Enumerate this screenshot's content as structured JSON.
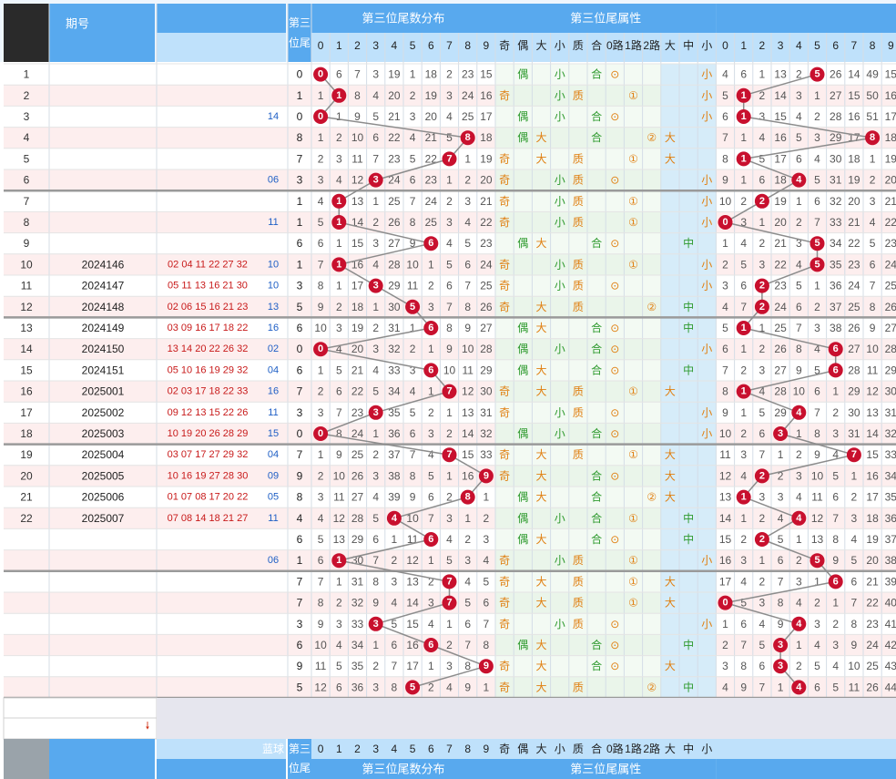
{
  "header": {
    "issue_col": "期号",
    "weitail_col_top": "第三",
    "weitail_col_bot": "位尾",
    "group1_title": "第三位尾数分布",
    "group2_title": "第三位尾属性",
    "group3_title": "",
    "digits": [
      "0",
      "1",
      "2",
      "3",
      "4",
      "5",
      "6",
      "7",
      "8",
      "9"
    ],
    "attr_labels": [
      "奇",
      "偶",
      "大",
      "小",
      "质",
      "合",
      "0路",
      "1路",
      "2路",
      "大",
      "中",
      "小"
    ],
    "footer_blue": "蓝球"
  },
  "colors": {
    "header_blue": "#58a9ee",
    "header_light": "#bfe1fb",
    "ball_red": "#c8102e",
    "row_pink": "#fdeeee",
    "row_white": "#ffffff",
    "attr_green": "#2e9a2e",
    "attr_orange": "#e07f10"
  },
  "rows": [
    {
      "n": "1",
      "issue": "",
      "nums": "",
      "blue": "",
      "w": 0,
      "c1": [
        0,
        6,
        7,
        3,
        19,
        1,
        18,
        2,
        23,
        15
      ],
      "a": [
        "",
        "偶",
        "",
        "小",
        "",
        "合",
        "⊙",
        "",
        "",
        "",
        "",
        "小"
      ],
      "c3": [
        4,
        6,
        1,
        13,
        2,
        5,
        26,
        14,
        49,
        15
      ],
      "h": 5
    },
    {
      "n": "2",
      "issue": "",
      "nums": "",
      "blue": "",
      "w": 1,
      "c1": [
        1,
        1,
        8,
        4,
        20,
        2,
        19,
        3,
        24,
        16
      ],
      "a": [
        "奇",
        "",
        "",
        "小",
        "质",
        "",
        "",
        "①",
        "",
        "",
        "",
        "小"
      ],
      "c3": [
        5,
        1,
        2,
        14,
        3,
        1,
        27,
        15,
        50,
        16
      ],
      "h": 1
    },
    {
      "n": "3",
      "issue": "",
      "nums": "",
      "blue": "14",
      "w": 0,
      "c1": [
        0,
        1,
        9,
        5,
        21,
        3,
        20,
        4,
        25,
        17
      ],
      "a": [
        "",
        "偶",
        "",
        "小",
        "",
        "合",
        "⊙",
        "",
        "",
        "",
        "",
        "小"
      ],
      "c3": [
        6,
        1,
        3,
        15,
        4,
        2,
        28,
        16,
        51,
        17
      ],
      "h": 1
    },
    {
      "n": "4",
      "issue": "",
      "nums": "",
      "blue": "",
      "w": 8,
      "c1": [
        1,
        2,
        10,
        6,
        22,
        4,
        21,
        5,
        8,
        18
      ],
      "a": [
        "",
        "偶",
        "大",
        "",
        "",
        "合",
        "",
        "",
        "②",
        "大",
        "",
        ""
      ],
      "c3": [
        7,
        1,
        4,
        16,
        5,
        3,
        29,
        17,
        8,
        18
      ],
      "h": 8
    },
    {
      "n": "5",
      "issue": "",
      "nums": "",
      "blue": "",
      "w": 7,
      "c1": [
        2,
        3,
        11,
        7,
        23,
        5,
        22,
        7,
        1,
        19
      ],
      "a": [
        "奇",
        "",
        "大",
        "",
        "质",
        "",
        "",
        "①",
        "",
        "大",
        "",
        ""
      ],
      "c3": [
        8,
        1,
        5,
        17,
        6,
        4,
        30,
        18,
        1,
        19
      ],
      "h": 1
    },
    {
      "n": "6",
      "issue": "",
      "nums": "",
      "blue": "06",
      "w": 3,
      "c1": [
        3,
        4,
        12,
        3,
        24,
        6,
        23,
        1,
        2,
        20
      ],
      "a": [
        "奇",
        "",
        "",
        "小",
        "质",
        "",
        "⊙",
        "",
        "",
        "",
        "",
        "小"
      ],
      "c3": [
        9,
        1,
        6,
        18,
        4,
        5,
        31,
        19,
        2,
        20
      ],
      "h": 4
    },
    {
      "n": "7",
      "issue": "",
      "nums": "",
      "blue": "",
      "w": 1,
      "c1": [
        4,
        1,
        13,
        1,
        25,
        7,
        24,
        2,
        3,
        21
      ],
      "a": [
        "奇",
        "",
        "",
        "小",
        "质",
        "",
        "",
        "①",
        "",
        "",
        "",
        "小"
      ],
      "c3": [
        10,
        2,
        2,
        19,
        1,
        6,
        32,
        20,
        3,
        21
      ],
      "h": 2
    },
    {
      "n": "8",
      "issue": "",
      "nums": "",
      "blue": "11",
      "w": 1,
      "c1": [
        5,
        1,
        14,
        2,
        26,
        8,
        25,
        3,
        4,
        22
      ],
      "a": [
        "奇",
        "",
        "",
        "小",
        "质",
        "",
        "",
        "①",
        "",
        "",
        "",
        "小"
      ],
      "c3": [
        0,
        3,
        1,
        20,
        2,
        7,
        33,
        21,
        4,
        22
      ],
      "h": 0
    },
    {
      "n": "9",
      "issue": "",
      "nums": "",
      "blue": "",
      "w": 6,
      "c1": [
        6,
        1,
        15,
        3,
        27,
        9,
        6,
        4,
        5,
        23
      ],
      "a": [
        "",
        "偶",
        "大",
        "",
        "",
        "合",
        "⊙",
        "",
        "",
        "",
        "中",
        ""
      ],
      "c3": [
        1,
        4,
        2,
        21,
        3,
        5,
        34,
        22,
        5,
        23
      ],
      "h": 5
    },
    {
      "n": "10",
      "issue": "2024146",
      "nums": "02 04 11 22 27 32",
      "blue": "10",
      "w": 1,
      "c1": [
        7,
        1,
        16,
        4,
        28,
        10,
        1,
        5,
        6,
        24
      ],
      "a": [
        "奇",
        "",
        "",
        "小",
        "质",
        "",
        "",
        "①",
        "",
        "",
        "",
        "小"
      ],
      "c3": [
        2,
        5,
        3,
        22,
        4,
        5,
        35,
        23,
        6,
        24
      ],
      "h": 5
    },
    {
      "n": "11",
      "issue": "2024147",
      "nums": "05 11 13 16 21 30",
      "blue": "10",
      "w": 3,
      "c1": [
        8,
        1,
        17,
        3,
        29,
        11,
        2,
        6,
        7,
        25
      ],
      "a": [
        "奇",
        "",
        "",
        "小",
        "质",
        "",
        "⊙",
        "",
        "",
        "",
        "",
        "小"
      ],
      "c3": [
        3,
        6,
        2,
        23,
        5,
        1,
        36,
        24,
        7,
        25
      ],
      "h": 2
    },
    {
      "n": "12",
      "issue": "2024148",
      "nums": "02 06 15 16 21 23",
      "blue": "13",
      "w": 5,
      "c1": [
        9,
        2,
        18,
        1,
        30,
        5,
        3,
        7,
        8,
        26
      ],
      "a": [
        "奇",
        "",
        "大",
        "",
        "质",
        "",
        "",
        "",
        "②",
        "",
        "中",
        ""
      ],
      "c3": [
        4,
        7,
        2,
        24,
        6,
        2,
        37,
        25,
        8,
        26
      ],
      "h": 2
    },
    {
      "n": "13",
      "issue": "2024149",
      "nums": "03 09 16 17 18 22",
      "blue": "16",
      "w": 6,
      "c1": [
        10,
        3,
        19,
        2,
        31,
        1,
        6,
        8,
        9,
        27
      ],
      "a": [
        "",
        "偶",
        "大",
        "",
        "",
        "合",
        "⊙",
        "",
        "",
        "",
        "中",
        ""
      ],
      "c3": [
        5,
        1,
        1,
        25,
        7,
        3,
        38,
        26,
        9,
        27
      ],
      "h": 1
    },
    {
      "n": "14",
      "issue": "2024150",
      "nums": "13 14 20 22 26 32",
      "blue": "02",
      "w": 0,
      "c1": [
        0,
        4,
        20,
        3,
        32,
        2,
        1,
        9,
        10,
        28
      ],
      "a": [
        "",
        "偶",
        "",
        "小",
        "",
        "合",
        "⊙",
        "",
        "",
        "",
        "",
        "小"
      ],
      "c3": [
        6,
        1,
        2,
        26,
        8,
        4,
        6,
        27,
        10,
        28
      ],
      "h": 6
    },
    {
      "n": "15",
      "issue": "2024151",
      "nums": "05 10 16 19 29 32",
      "blue": "04",
      "w": 6,
      "c1": [
        1,
        5,
        21,
        4,
        33,
        3,
        6,
        10,
        11,
        29
      ],
      "a": [
        "",
        "偶",
        "大",
        "",
        "",
        "合",
        "⊙",
        "",
        "",
        "",
        "中",
        ""
      ],
      "c3": [
        7,
        2,
        3,
        27,
        9,
        5,
        6,
        28,
        11,
        29
      ],
      "h": 6
    },
    {
      "n": "16",
      "issue": "2025001",
      "nums": "02 03 17 18 22 33",
      "blue": "16",
      "w": 7,
      "c1": [
        2,
        6,
        22,
        5,
        34,
        4,
        1,
        7,
        12,
        30
      ],
      "a": [
        "奇",
        "",
        "大",
        "",
        "质",
        "",
        "",
        "①",
        "",
        "大",
        "",
        ""
      ],
      "c3": [
        8,
        1,
        4,
        28,
        10,
        6,
        1,
        29,
        12,
        30
      ],
      "h": 1
    },
    {
      "n": "17",
      "issue": "2025002",
      "nums": "09 12 13 15 22 26",
      "blue": "11",
      "w": 3,
      "c1": [
        3,
        7,
        23,
        3,
        35,
        5,
        2,
        1,
        13,
        31
      ],
      "a": [
        "奇",
        "",
        "",
        "小",
        "质",
        "",
        "⊙",
        "",
        "",
        "",
        "",
        "小"
      ],
      "c3": [
        9,
        1,
        5,
        29,
        4,
        7,
        2,
        30,
        13,
        31
      ],
      "h": 4
    },
    {
      "n": "18",
      "issue": "2025003",
      "nums": "10 19 20 26 28 29",
      "blue": "15",
      "w": 0,
      "c1": [
        0,
        8,
        24,
        1,
        36,
        6,
        3,
        2,
        14,
        32
      ],
      "a": [
        "",
        "偶",
        "",
        "小",
        "",
        "合",
        "⊙",
        "",
        "",
        "",
        "",
        "小"
      ],
      "c3": [
        10,
        2,
        6,
        3,
        1,
        8,
        3,
        31,
        14,
        32
      ],
      "h": 3
    },
    {
      "n": "19",
      "issue": "2025004",
      "nums": "03 07 17 27 29 32",
      "blue": "04",
      "w": 7,
      "c1": [
        1,
        9,
        25,
        2,
        37,
        7,
        4,
        7,
        15,
        33
      ],
      "a": [
        "奇",
        "",
        "大",
        "",
        "质",
        "",
        "",
        "①",
        "",
        "大",
        "",
        ""
      ],
      "c3": [
        11,
        3,
        7,
        1,
        2,
        9,
        4,
        7,
        15,
        33
      ],
      "h": 7
    },
    {
      "n": "20",
      "issue": "2025005",
      "nums": "10 16 19 27 28 30",
      "blue": "09",
      "w": 9,
      "c1": [
        2,
        10,
        26,
        3,
        38,
        8,
        5,
        1,
        16,
        9
      ],
      "a": [
        "奇",
        "",
        "大",
        "",
        "",
        "合",
        "⊙",
        "",
        "",
        "大",
        "",
        ""
      ],
      "c3": [
        12,
        4,
        2,
        2,
        3,
        10,
        5,
        1,
        16,
        34
      ],
      "h": 2
    },
    {
      "n": "21",
      "issue": "2025006",
      "nums": "01 07 08 17 20 22",
      "blue": "05",
      "w": 8,
      "c1": [
        3,
        11,
        27,
        4,
        39,
        9,
        6,
        2,
        8,
        1
      ],
      "a": [
        "",
        "偶",
        "大",
        "",
        "",
        "合",
        "",
        "",
        "②",
        "大",
        "",
        ""
      ],
      "c3": [
        13,
        1,
        3,
        3,
        4,
        11,
        6,
        2,
        17,
        35
      ],
      "h": 1
    },
    {
      "n": "22",
      "issue": "2025007",
      "nums": "07 08 14 18 21 27",
      "blue": "11",
      "w": 4,
      "c1": [
        4,
        12,
        28,
        5,
        4,
        10,
        7,
        3,
        1,
        2
      ],
      "a": [
        "",
        "偶",
        "",
        "小",
        "",
        "合",
        "",
        "①",
        "",
        "",
        "中",
        ""
      ],
      "c3": [
        14,
        1,
        2,
        4,
        4,
        12,
        7,
        3,
        18,
        36
      ],
      "h": 4
    },
    {
      "n": "",
      "issue": "",
      "nums": "",
      "blue": "",
      "w": 6,
      "c1": [
        5,
        13,
        29,
        6,
        1,
        11,
        6,
        4,
        2,
        3
      ],
      "a": [
        "",
        "偶",
        "大",
        "",
        "",
        "合",
        "⊙",
        "",
        "",
        "",
        "中",
        ""
      ],
      "c3": [
        15,
        2,
        2,
        5,
        1,
        13,
        8,
        4,
        19,
        37
      ],
      "h": 2
    },
    {
      "n": "",
      "issue": "",
      "nums": "",
      "blue": "06",
      "w": 1,
      "c1": [
        6,
        1,
        30,
        7,
        2,
        12,
        1,
        5,
        3,
        4
      ],
      "a": [
        "奇",
        "",
        "",
        "小",
        "质",
        "",
        "",
        "①",
        "",
        "",
        "",
        "小"
      ],
      "c3": [
        16,
        3,
        1,
        6,
        2,
        5,
        9,
        5,
        20,
        38
      ],
      "h": 5
    },
    {
      "n": "",
      "issue": "",
      "nums": "",
      "blue": "",
      "w": 7,
      "c1": [
        7,
        1,
        31,
        8,
        3,
        13,
        2,
        7,
        4,
        5
      ],
      "a": [
        "奇",
        "",
        "大",
        "",
        "质",
        "",
        "",
        "①",
        "",
        "大",
        "",
        ""
      ],
      "c3": [
        17,
        4,
        2,
        7,
        3,
        1,
        6,
        6,
        21,
        39
      ],
      "h": 6
    },
    {
      "n": "",
      "issue": "",
      "nums": "",
      "blue": "",
      "w": 7,
      "c1": [
        8,
        2,
        32,
        9,
        4,
        14,
        3,
        7,
        5,
        6
      ],
      "a": [
        "奇",
        "",
        "大",
        "",
        "质",
        "",
        "",
        "①",
        "",
        "大",
        "",
        ""
      ],
      "c3": [
        0,
        5,
        3,
        8,
        4,
        2,
        1,
        7,
        22,
        40
      ],
      "h": 0
    },
    {
      "n": "",
      "issue": "",
      "nums": "",
      "blue": "",
      "w": 3,
      "c1": [
        9,
        3,
        33,
        3,
        5,
        15,
        4,
        1,
        6,
        7
      ],
      "a": [
        "奇",
        "",
        "",
        "小",
        "质",
        "",
        "⊙",
        "",
        "",
        "",
        "",
        "小"
      ],
      "c3": [
        1,
        6,
        4,
        9,
        4,
        3,
        2,
        8,
        23,
        41
      ],
      "h": 4
    },
    {
      "n": "",
      "issue": "",
      "nums": "",
      "blue": "",
      "w": 6,
      "c1": [
        10,
        4,
        34,
        1,
        6,
        16,
        6,
        2,
        7,
        8
      ],
      "a": [
        "",
        "偶",
        "大",
        "",
        "",
        "合",
        "⊙",
        "",
        "",
        "",
        "中",
        ""
      ],
      "c3": [
        2,
        7,
        5,
        3,
        1,
        4,
        3,
        9,
        24,
        42
      ],
      "h": 3
    },
    {
      "n": "",
      "issue": "",
      "nums": "",
      "blue": "",
      "w": 9,
      "c1": [
        11,
        5,
        35,
        2,
        7,
        17,
        1,
        3,
        8,
        9
      ],
      "a": [
        "奇",
        "",
        "大",
        "",
        "",
        "合",
        "⊙",
        "",
        "",
        "大",
        "",
        ""
      ],
      "c3": [
        3,
        8,
        6,
        3,
        2,
        5,
        4,
        10,
        25,
        43
      ],
      "h": 3
    },
    {
      "n": "",
      "issue": "",
      "nums": "",
      "blue": "",
      "w": 5,
      "c1": [
        12,
        6,
        36,
        3,
        8,
        5,
        2,
        4,
        9,
        1
      ],
      "a": [
        "奇",
        "",
        "大",
        "",
        "质",
        "",
        "",
        "",
        "②",
        "",
        "中",
        ""
      ],
      "c3": [
        4,
        9,
        7,
        1,
        4,
        6,
        5,
        11,
        26,
        44
      ],
      "h": 4
    }
  ]
}
